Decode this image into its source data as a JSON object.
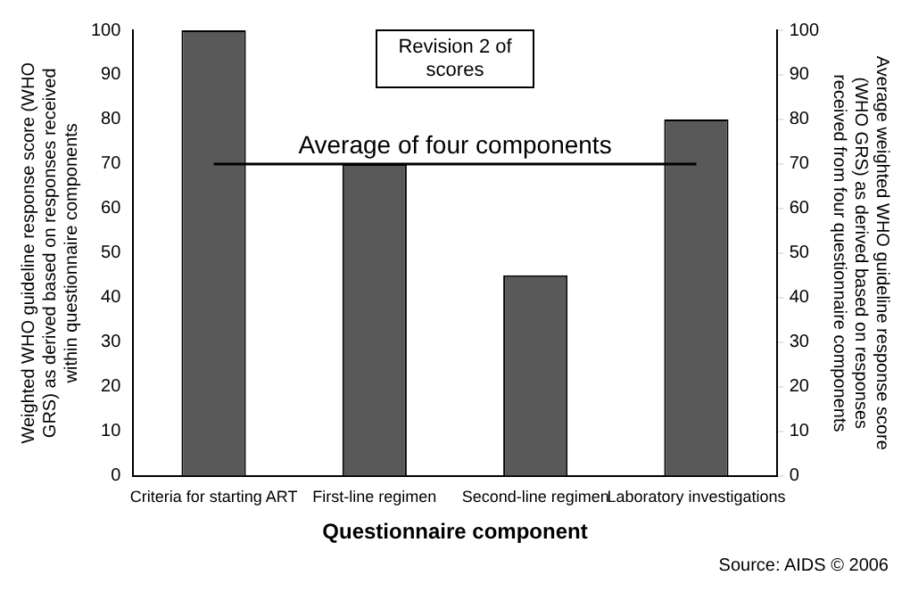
{
  "chart_data": {
    "type": "bar",
    "categories": [
      "Criteria for starting ART",
      "First-line regimen",
      "Second-line regimen",
      "Laboratory investigations"
    ],
    "values": [
      100,
      70,
      45,
      80
    ],
    "color": "#595959",
    "xlabel": "Questionnaire component",
    "ylabel": "Weighted WHO guideline response score (WHO GRS) as derived based on responses received within questionnaire components",
    "y2label": "Average weighted WHO guideline response score (WHO GRS) as derived based on responses received from four questionnaire components",
    "ylim": [
      0,
      100
    ],
    "yticks": [
      0,
      10,
      20,
      30,
      40,
      50,
      60,
      70,
      80,
      90,
      100
    ],
    "y2lim": [
      0,
      100
    ],
    "y2ticks": [
      0,
      10,
      20,
      30,
      40,
      50,
      60,
      70,
      80,
      90,
      100
    ],
    "ref_lines": [
      {
        "axis": "y",
        "value": 70,
        "label": "Average of four components",
        "color": "#000000"
      }
    ],
    "annotations": [
      "Revision 2 of scores",
      "Source: AIDS © 2006"
    ],
    "grid": false,
    "legend": false
  }
}
